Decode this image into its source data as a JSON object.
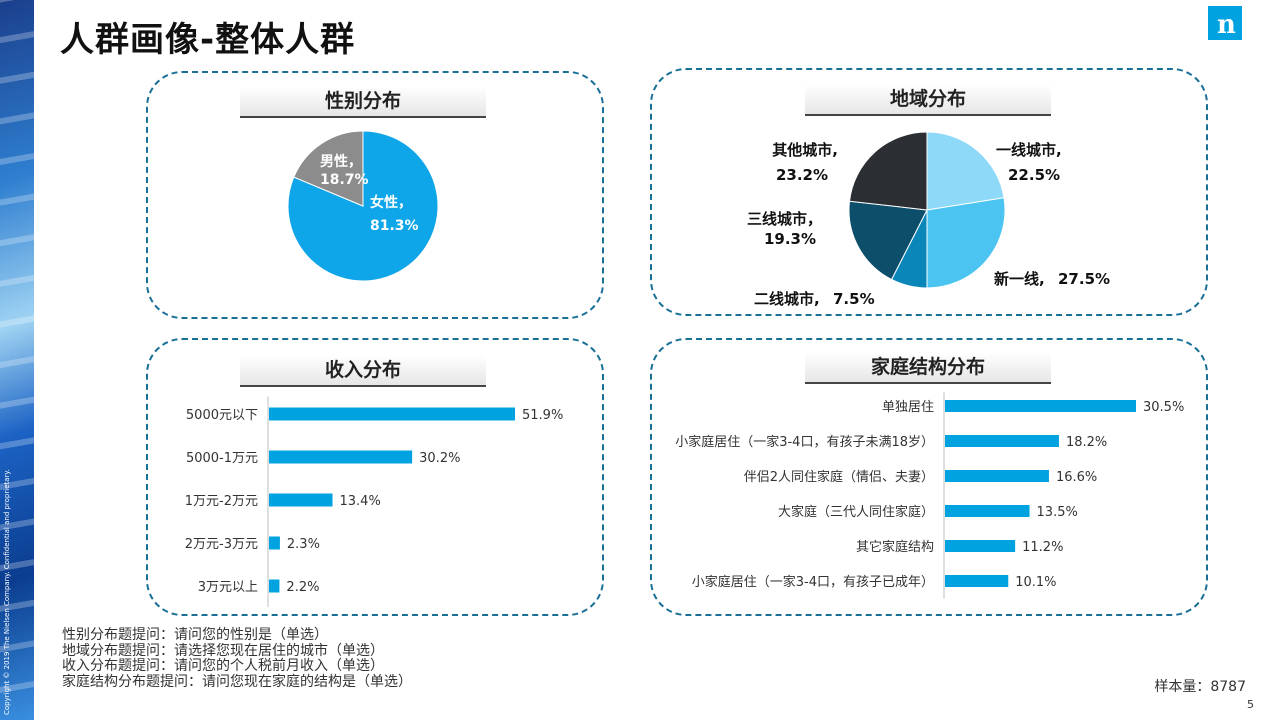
{
  "page": {
    "title": "人群画像-整体人群",
    "copyright": "Copyright © 2019 The Nielsen Company. Confidential and proprietary.",
    "logo_letter": "n",
    "sample_size": "样本量：8787",
    "page_number": "5",
    "notes": [
      "性别分布题提问：请问您的性别是（单选）",
      "地域分布题提问：请选择您现在居住的城市（单选）",
      "收入分布题提问：请问您的个人税前月收入（单选）",
      "家庭结构分布题提问：请问您现在家庭的结构是（单选）"
    ],
    "colors": {
      "accent": "#00a3e0",
      "panel_border": "#1a6f97",
      "gray": "#8c8c8c"
    }
  },
  "chart_data": [
    {
      "type": "pie",
      "title": "性别分布",
      "slices": [
        {
          "label": "女性，",
          "value": 81.3,
          "value_label": "81.3%",
          "color": "#0ea5e9"
        },
        {
          "label": "男性，",
          "value": 18.7,
          "value_label": "18.7%",
          "color": "#8c8c8c"
        }
      ]
    },
    {
      "type": "pie",
      "title": "地域分布",
      "slices": [
        {
          "label": "一线城市,",
          "value": 22.5,
          "value_label": "22.5%",
          "color": "#8ed8f8"
        },
        {
          "label": "新一线,",
          "value": 27.5,
          "value_label": "27.5%",
          "color": "#4cc4f2"
        },
        {
          "label": "二线城市,",
          "value": 7.5,
          "value_label": "7.5%",
          "color": "#0a86b8"
        },
        {
          "label": "三线城市，",
          "value": 19.3,
          "value_label": "19.3%",
          "color": "#0d4e6b"
        },
        {
          "label": "其他城市,",
          "value": 23.2,
          "value_label": "23.2%",
          "color": "#2b2f33"
        }
      ]
    },
    {
      "type": "bar",
      "orientation": "horizontal",
      "title": "收入分布",
      "categories": [
        "5000元以下",
        "5000-1万元",
        "1万元-2万元",
        "2万元-3万元",
        "3万元以上"
      ],
      "values": [
        51.9,
        30.2,
        13.4,
        2.3,
        2.2
      ],
      "value_labels": [
        "51.9%",
        "30.2%",
        "13.4%",
        "2.3%",
        "2.2%"
      ],
      "color": "#00a3e0"
    },
    {
      "type": "bar",
      "orientation": "horizontal",
      "title": "家庭结构分布",
      "categories": [
        "单独居住",
        "小家庭居住（一家3-4口，有孩子未满18岁）",
        "伴侣2人同住家庭（情侣、夫妻）",
        "大家庭（三代人同住家庭）",
        "其它家庭结构",
        "小家庭居住（一家3-4口，有孩子已成年）"
      ],
      "values": [
        30.5,
        18.2,
        16.6,
        13.5,
        11.2,
        10.1
      ],
      "value_labels": [
        "30.5%",
        "18.2%",
        "16.6%",
        "13.5%",
        "11.2%",
        "10.1%"
      ],
      "color": "#00a3e0"
    }
  ]
}
